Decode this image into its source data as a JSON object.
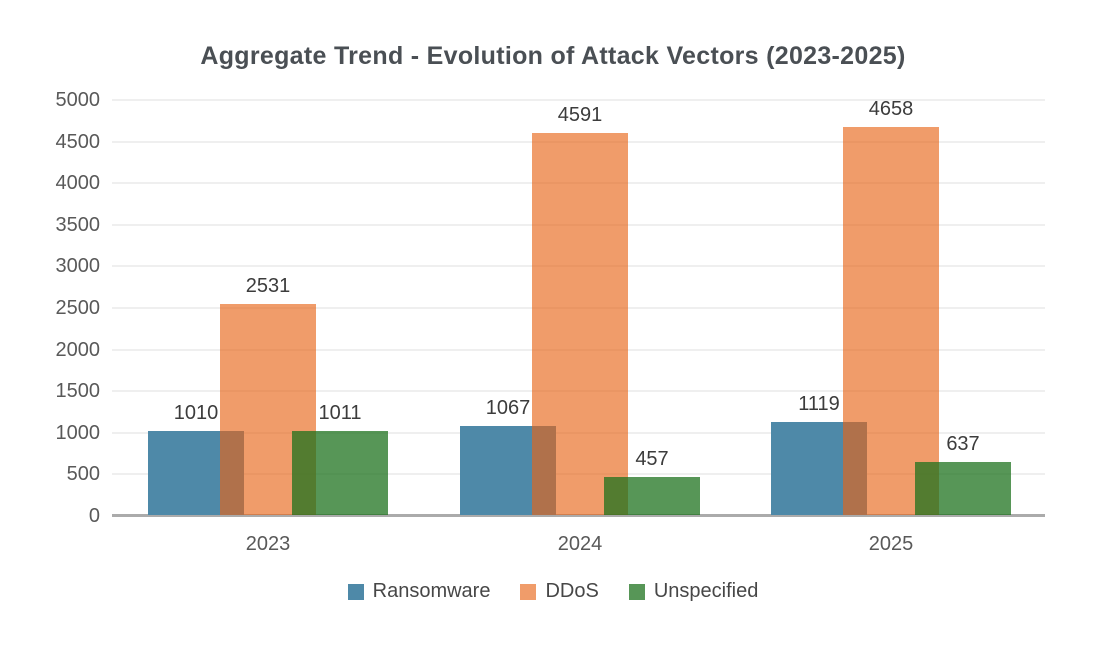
{
  "chart_data": {
    "type": "bar",
    "title": "Aggregate Trend - Evolution of Attack Vectors (2023-2025)",
    "categories": [
      "2023",
      "2024",
      "2025"
    ],
    "series": [
      {
        "name": "Ransomware",
        "color": "#4e89a8",
        "fill_rgba": "rgba(78,137,168,1)",
        "values": [
          1010,
          1067,
          1119
        ]
      },
      {
        "name": "DDoS",
        "color": "#f09c6a",
        "fill_rgba": "rgba(232,100,22,0.64)",
        "values": [
          2531,
          4591,
          4658
        ]
      },
      {
        "name": "Unspecified",
        "color": "#579657",
        "fill_rgba": "rgba(28,113,28,0.74)",
        "values": [
          1011,
          457,
          637
        ]
      }
    ],
    "ylim": [
      0,
      5000
    ],
    "ytick_step": 500,
    "ytick_labels": [
      "0",
      "500",
      "1000",
      "1500",
      "2000",
      "2500",
      "3000",
      "3500",
      "4000",
      "4500",
      "5000"
    ],
    "grid": true,
    "bar_value_labels": true,
    "legend_position": "bottom",
    "bars_overlap": true
  },
  "colors": {
    "background": "#ffffff",
    "title_text": "#4a4f54",
    "tick_text": "#595959",
    "value_label_text": "#3c3c3c",
    "gridline": "#efefef",
    "axis_line": "#ababab"
  }
}
